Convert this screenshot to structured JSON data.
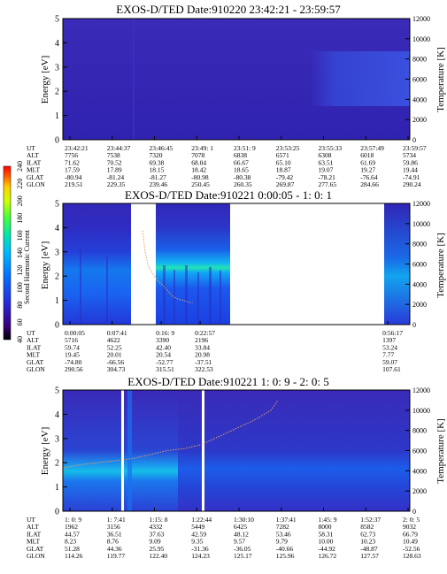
{
  "panels": [
    {
      "title": "EXOS-D/TED   Date:910220  23:42:21 - 23:59:57",
      "ylabel": "Energy [eV]",
      "y2label": "Temperature [K]",
      "ytick_labels": [
        "0",
        "1",
        "2",
        "3",
        "4",
        "5"
      ],
      "y2tick_labels": [
        "0",
        "2000",
        "4000",
        "6000",
        "8000",
        "10000",
        "12000"
      ],
      "eph_labels": [
        "UT",
        "ALT",
        "ILAT",
        "MLT",
        "GLAT",
        "GLON"
      ],
      "eph_rows": [
        [
          "23:42:21",
          "23:44:37",
          "23:46:45",
          "23:49: 1",
          "23:51: 9",
          "23:53:25",
          "23:55:33",
          "23:57:49",
          "23:59:57"
        ],
        [
          "7756",
          "7538",
          "7320",
          "7078",
          "6838",
          "6571",
          "6308",
          "6018",
          "5734"
        ],
        [
          "71.62",
          "70.52",
          "69.38",
          "68.04",
          "66.67",
          "65.10",
          "63.51",
          "61.69",
          "59.86"
        ],
        [
          "17.59",
          "17.89",
          "18.15",
          "18.42",
          "18.65",
          "18.87",
          "19.07",
          "19.27",
          "19.44"
        ],
        [
          "-80.94",
          "-81.24",
          "-81.27",
          "-80.98",
          "-80.38",
          "-79.42",
          "-78.21",
          "-76.64",
          "-74.91"
        ],
        [
          "219.51",
          "229.35",
          "239.46",
          "250.45",
          "260.35",
          "269.87",
          "277.65",
          "284.66",
          "290.24"
        ]
      ]
    },
    {
      "title": "EXOS-D/TED   Date:910221  0:00:05 - 1: 0: 1",
      "ylabel": "Energy [eV]",
      "y2label": "Temperature [K]",
      "ytick_labels": [
        "0",
        "1",
        "2",
        "3",
        "4",
        "5"
      ],
      "y2tick_labels": [
        "0",
        "2000",
        "4000",
        "6000",
        "8000",
        "10000",
        "12000"
      ],
      "eph_labels": [
        "UT",
        "ALT",
        "ILAT",
        "MLT",
        "GLAT",
        "GLON"
      ],
      "eph_rows": [
        [
          "0:00:05",
          "0:07:41",
          "0:16: 9",
          "0:22:57",
          "0:56:17"
        ],
        [
          "5716",
          "4622",
          "3390",
          "2196",
          "1397"
        ],
        [
          "59.74",
          "52.25",
          "42.40",
          "33.84",
          "53.24"
        ],
        [
          "19.45",
          "20.01",
          "20.54",
          "20.98",
          "7.77"
        ],
        [
          "-74.80",
          "-66.56",
          "-52.77",
          "-37.51",
          "59.07"
        ],
        [
          "290.56",
          "304.73",
          "315.51",
          "322.53",
          "107.61"
        ]
      ]
    },
    {
      "title": "EXOS-D/TED   Date:910221  1: 0: 9 - 2: 0: 5",
      "ylabel": "Energy [eV]",
      "y2label": "Temperature [K]",
      "ytick_labels": [
        "0",
        "1",
        "2",
        "3",
        "4",
        "5"
      ],
      "y2tick_labels": [
        "0",
        "2000",
        "4000",
        "6000",
        "8000",
        "10000",
        "12000"
      ],
      "eph_labels": [
        "UT",
        "ALT",
        "ILAT",
        "MLT",
        "GLAT",
        "GLON"
      ],
      "eph_rows": [
        [
          "1: 0: 9",
          "1: 7:41",
          "1:15: 8",
          "1:22:44",
          "1:30:10",
          "1:37:41",
          "1:45: 9",
          "1:52:37",
          "2: 0: 5"
        ],
        [
          "1962",
          "3156",
          "4332",
          "5449",
          "6425",
          "7282",
          "8000",
          "8582",
          "9032"
        ],
        [
          "44.57",
          "36.51",
          "37.63",
          "42.59",
          "48.12",
          "53.46",
          "58.31",
          "62.73",
          "66.79"
        ],
        [
          "8.23",
          "8.76",
          "9.09",
          "9.35",
          "9.57",
          "9.79",
          "10.00",
          "10.23",
          "10.49"
        ],
        [
          "51.28",
          "44.36",
          "25.95",
          "-31.36",
          "-36.05",
          "-40.66",
          "-44.92",
          "-48.87",
          "-52.56"
        ],
        [
          "114.26",
          "119.77",
          "122.40",
          "124.23",
          "125.17",
          "125.96",
          "126.72",
          "127.57",
          "128.63"
        ]
      ]
    }
  ],
  "colorbar": {
    "label": "Second Harmonic Current",
    "tick_labels": [
      "40",
      "60",
      "80",
      "100",
      "120",
      "140",
      "160",
      "180",
      "200",
      "220",
      "240"
    ]
  },
  "chart_data": [
    {
      "type": "heatmap",
      "title": "EXOS-D/TED   Date:910220  23:42:21 - 23:59:57",
      "xlabel": "UT",
      "ylabel": "Energy [eV]",
      "y2label": "Temperature [K]",
      "ylim": [
        0,
        5
      ],
      "y2lim": [
        0,
        12000
      ],
      "x_ticks": [
        "23:42:21",
        "23:44:37",
        "23:46:45",
        "23:49: 1",
        "23:51: 9",
        "23:53:25",
        "23:55:33",
        "23:57:49",
        "23:59:57"
      ],
      "gaps": [],
      "temperature_trace": []
    },
    {
      "type": "heatmap",
      "title": "EXOS-D/TED   Date:910221  0:00:05 - 1: 0: 1",
      "xlabel": "UT",
      "ylabel": "Energy [eV]",
      "y2label": "Temperature [K]",
      "ylim": [
        0,
        5
      ],
      "y2lim": [
        0,
        12000
      ],
      "x_ticks": [
        "0:00:05",
        "0:07:41",
        "0:16: 9",
        "0:22:57",
        "0:56:17"
      ],
      "gaps": [
        [
          "0:12:00",
          "0:16: 9"
        ],
        [
          "0:26:10",
          "0:54:20"
        ]
      ],
      "temperature_trace": [
        [
          0.5,
          9300
        ],
        [
          0.52,
          7300
        ],
        [
          0.55,
          5800
        ],
        [
          0.6,
          4900
        ],
        [
          0.64,
          4300
        ],
        [
          0.69,
          3800
        ],
        [
          0.73,
          3300
        ],
        [
          0.76,
          2900
        ],
        [
          0.8,
          2600
        ],
        [
          0.83,
          2500
        ],
        [
          0.86,
          2400
        ],
        [
          0.89,
          2300
        ],
        [
          0.92,
          2200
        ],
        [
          0.95,
          2200
        ]
      ]
    },
    {
      "type": "heatmap",
      "title": "EXOS-D/TED   Date:910221  1: 0: 9 - 2: 0: 5",
      "xlabel": "UT",
      "ylabel": "Energy [eV]",
      "y2label": "Temperature [K]",
      "ylim": [
        0,
        5
      ],
      "y2lim": [
        0,
        12000
      ],
      "x_ticks": [
        "1: 0: 9",
        "1: 7:41",
        "1:15: 8",
        "1:22:44",
        "1:30:10",
        "1:37:41",
        "1:45: 9",
        "1:52:37",
        "2: 0: 5"
      ],
      "gaps": [
        [
          "1:12:25",
          "1:12:50"
        ],
        [
          "1:22:20",
          "1:22:40"
        ]
      ],
      "temperature_trace": [
        [
          0.0,
          4300
        ],
        [
          0.05,
          4600
        ],
        [
          0.1,
          4800
        ],
        [
          0.15,
          5000
        ],
        [
          0.2,
          5200
        ],
        [
          0.25,
          5600
        ],
        [
          0.3,
          6000
        ],
        [
          0.35,
          6200
        ],
        [
          0.4,
          6600
        ],
        [
          0.45,
          7400
        ],
        [
          0.5,
          8200
        ],
        [
          0.55,
          9000
        ],
        [
          0.6,
          10000
        ],
        [
          0.62,
          11000
        ]
      ]
    }
  ]
}
